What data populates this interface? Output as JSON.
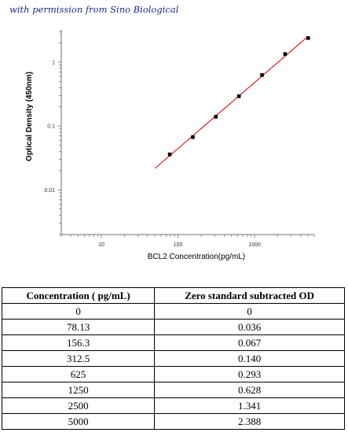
{
  "credit": "with permission from Sino Biological",
  "chart_data": {
    "type": "scatter",
    "xlabel": "BCL2  Concentration(pg/mL)",
    "ylabel": "Optical Density (450nm)",
    "xscale": "log",
    "yscale": "log",
    "xlim": [
      3,
      6000
    ],
    "ylim": [
      0.002,
      3.2
    ],
    "xticks": [
      10,
      100,
      1000
    ],
    "xtick_labels": [
      "10",
      "100",
      "1000"
    ],
    "yticks": [
      0.01,
      0.1,
      1
    ],
    "ytick_labels": [
      "0.01",
      "0.1",
      "1"
    ],
    "grid": false,
    "points": [
      {
        "x": 78.13,
        "y": 0.036
      },
      {
        "x": 156.3,
        "y": 0.067
      },
      {
        "x": 312.5,
        "y": 0.14
      },
      {
        "x": 625,
        "y": 0.293
      },
      {
        "x": 1250,
        "y": 0.628
      },
      {
        "x": 2500,
        "y": 1.341
      },
      {
        "x": 5000,
        "y": 2.388
      }
    ],
    "fit_line": {
      "x_start": 50,
      "x_end": 5000,
      "color": "#cc0000"
    },
    "marker_color": "#000000"
  },
  "table": {
    "headers": [
      "Concentration ( pg/mL)",
      "Zero standard subtracted OD"
    ],
    "rows": [
      [
        "0",
        "0"
      ],
      [
        "78.13",
        "0.036"
      ],
      [
        "156.3",
        "0.067"
      ],
      [
        "312.5",
        "0.140"
      ],
      [
        "625",
        "0.293"
      ],
      [
        "1250",
        "0.628"
      ],
      [
        "2500",
        "1.341"
      ],
      [
        "5000",
        "2.388"
      ]
    ]
  }
}
